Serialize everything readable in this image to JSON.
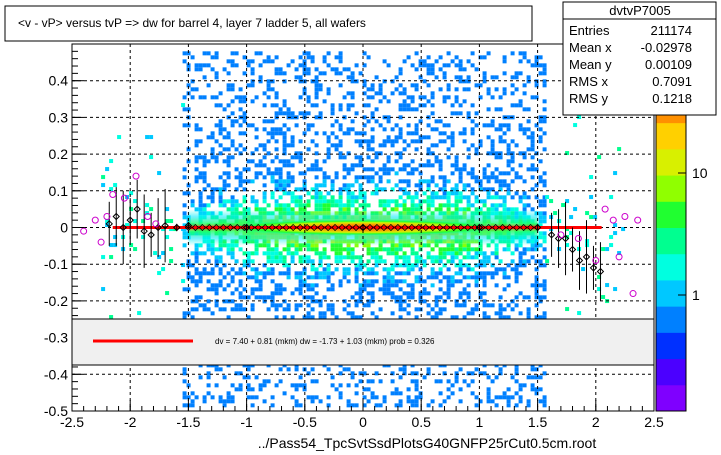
{
  "title": "<v - vP>       versus  tvP =>  dw for barrel 4, layer 7 ladder 5, all wafers",
  "footer": "../Pass54_TpcSvtSsdPlotsG40GNFP25rCut0.5cm.root",
  "stats": {
    "name": "dvtvP7005",
    "rows": [
      {
        "label": "Entries",
        "value": "211174"
      },
      {
        "label": "Mean x",
        "value": "-0.02978"
      },
      {
        "label": "Mean y",
        "value": "0.00109"
      },
      {
        "label": "RMS x",
        "value": "0.7091"
      },
      {
        "label": "RMS y",
        "value": "0.1218"
      }
    ]
  },
  "fit_legend": "dv =    7.40 +  0.81 (mkm) dw =   -1.73 +  1.03 (mkm) prob = 0.326",
  "colors": {
    "fit_line": "#ff0000",
    "profile_black": "#000000",
    "profile_magenta": "#cc00cc",
    "palette": [
      "#7f00ff",
      "#4b00ff",
      "#0030ff",
      "#0080ff",
      "#00c8ff",
      "#00ffe0",
      "#00ff90",
      "#20ff30",
      "#90ff00",
      "#d8f000",
      "#ffd000",
      "#ff9000",
      "#ff5000",
      "#ff1000"
    ]
  },
  "chart_data": {
    "type": "heatmap",
    "xlim": [
      -2.5,
      2.5
    ],
    "ylim": [
      -0.5,
      0.5
    ],
    "x_ticks": [
      "-2.5",
      "-2",
      "-1.5",
      "-1",
      "-0.5",
      "0",
      "0.5",
      "1",
      "1.5",
      "2",
      "2.5"
    ],
    "y_ticks": [
      "-0.5",
      "-0.4",
      "-0.3",
      "-0.2",
      "-0.1",
      "0",
      "0.1",
      "0.2",
      "0.3",
      "0.4"
    ],
    "z_scale": "log",
    "z_ticks": [
      "1",
      "10"
    ],
    "z_top_fragment": "2",
    "grid": true,
    "fit_line": {
      "x": [
        -2.15,
        2.05
      ],
      "y": [
        0.0,
        0.0
      ]
    },
    "profile_black": [
      {
        "x": -2.18,
        "y": 0.01
      },
      {
        "x": -2.12,
        "y": 0.03
      },
      {
        "x": -2.06,
        "y": 0.0
      },
      {
        "x": -2.0,
        "y": 0.02
      },
      {
        "x": -1.94,
        "y": 0.05
      },
      {
        "x": -1.88,
        "y": -0.01
      },
      {
        "x": -1.82,
        "y": -0.02
      },
      {
        "x": -1.76,
        "y": 0.0
      },
      {
        "x": -1.7,
        "y": 0.005
      },
      {
        "x": -1.6,
        "y": 0.0
      },
      {
        "x": -1.5,
        "y": 0.005
      },
      {
        "x": -1.0,
        "y": 0.0
      },
      {
        "x": 0.0,
        "y": 0.0
      },
      {
        "x": 1.0,
        "y": 0.0
      },
      {
        "x": 1.5,
        "y": 0.0
      },
      {
        "x": 1.62,
        "y": -0.02
      },
      {
        "x": 1.68,
        "y": -0.03
      },
      {
        "x": 1.74,
        "y": -0.03
      },
      {
        "x": 1.8,
        "y": -0.06
      },
      {
        "x": 1.86,
        "y": -0.09
      },
      {
        "x": 1.92,
        "y": -0.08
      },
      {
        "x": 1.98,
        "y": -0.11
      },
      {
        "x": 2.04,
        "y": -0.12
      }
    ],
    "profile_magenta": [
      {
        "x": -2.4,
        "y": -0.01
      },
      {
        "x": -2.3,
        "y": 0.02
      },
      {
        "x": -2.25,
        "y": -0.04
      },
      {
        "x": -2.2,
        "y": 0.03
      },
      {
        "x": -2.15,
        "y": 0.09
      },
      {
        "x": -2.05,
        "y": 0.08
      },
      {
        "x": -1.95,
        "y": 0.14
      },
      {
        "x": -1.85,
        "y": 0.03
      },
      {
        "x": -1.78,
        "y": 0.01
      },
      {
        "x": 1.7,
        "y": -0.02
      },
      {
        "x": 1.85,
        "y": -0.03
      },
      {
        "x": 2.0,
        "y": -0.09
      },
      {
        "x": 2.08,
        "y": 0.05
      },
      {
        "x": 2.15,
        "y": 0.02
      },
      {
        "x": 2.2,
        "y": -0.08
      },
      {
        "x": 2.25,
        "y": 0.03
      },
      {
        "x": 2.32,
        "y": -0.18
      },
      {
        "x": 2.36,
        "y": 0.02
      }
    ]
  }
}
